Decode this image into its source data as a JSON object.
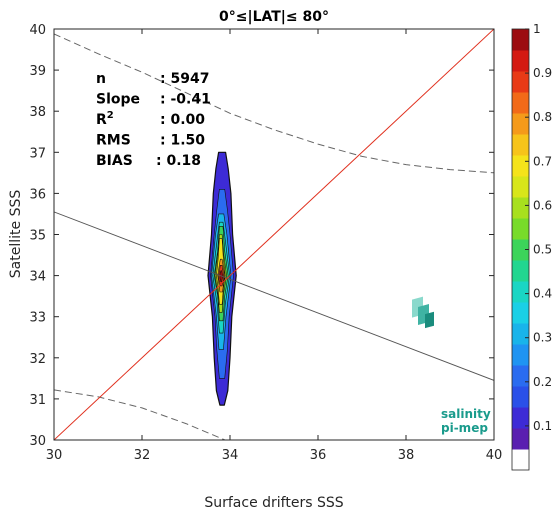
{
  "chart_data": {
    "type": "heatmap",
    "title": "0°≤|LAT|≤ 80°",
    "xlabel": "Surface drifters SSS",
    "ylabel": "Satellite SSS",
    "xlim": [
      30,
      40
    ],
    "ylim": [
      30,
      40
    ],
    "x_ticks": [
      30,
      32,
      34,
      36,
      38,
      40
    ],
    "y_ticks": [
      30,
      31,
      32,
      33,
      34,
      35,
      36,
      37,
      38,
      39,
      40
    ],
    "grid": false,
    "stats": [
      {
        "name": "n",
        "value": ": 5947"
      },
      {
        "name": "Slope",
        "value": ": -0.41"
      },
      {
        "name": "R",
        "sup": "2",
        "value": ": 0.00"
      },
      {
        "name": "RMS",
        "value": ": 1.50"
      },
      {
        "name": "BIAS",
        "value": ": 0.18"
      }
    ],
    "identity_line": {
      "x": [
        30,
        40
      ],
      "y": [
        30,
        40
      ],
      "color": "#e0301e"
    },
    "regression_line": {
      "x": [
        30,
        40
      ],
      "y": [
        35.55,
        31.45
      ],
      "color": "#555555"
    },
    "dashed_upper": {
      "x": [
        30,
        31,
        32,
        33,
        34,
        35,
        36,
        37,
        38,
        39,
        40
      ],
      "y": [
        39.88,
        39.4,
        38.95,
        38.45,
        37.95,
        37.55,
        37.2,
        36.9,
        36.7,
        36.58,
        36.5
      ]
    },
    "dashed_lower": {
      "x": [
        30,
        31,
        32,
        33,
        34
      ],
      "y": [
        31.22,
        31.05,
        30.78,
        30.4,
        29.95
      ]
    },
    "density_contours": [
      {
        "level": 0.05,
        "color": "#3d2bd6",
        "cx": 33.82,
        "w": [
          [
            30.85,
            0.05
          ],
          [
            31.2,
            0.13
          ],
          [
            32.0,
            0.18
          ],
          [
            33.0,
            0.22
          ],
          [
            34.0,
            0.32
          ],
          [
            35.0,
            0.24
          ],
          [
            36.0,
            0.2
          ],
          [
            36.6,
            0.14
          ],
          [
            37.0,
            0.08
          ]
        ]
      },
      {
        "level": 0.15,
        "color": "#2a6cf0",
        "cx": 33.82,
        "w": [
          [
            31.5,
            0.06
          ],
          [
            32.2,
            0.12
          ],
          [
            33.0,
            0.16
          ],
          [
            34.0,
            0.26
          ],
          [
            35.0,
            0.18
          ],
          [
            35.6,
            0.12
          ],
          [
            36.1,
            0.06
          ]
        ]
      },
      {
        "level": 0.25,
        "color": "#19b4ea",
        "cx": 33.8,
        "w": [
          [
            32.2,
            0.05
          ],
          [
            33.0,
            0.11
          ],
          [
            34.0,
            0.22
          ],
          [
            35.0,
            0.13
          ],
          [
            35.5,
            0.06
          ]
        ]
      },
      {
        "level": 0.35,
        "color": "#1ad6c4",
        "cx": 33.8,
        "w": [
          [
            32.6,
            0.04
          ],
          [
            33.3,
            0.09
          ],
          [
            34.0,
            0.19
          ],
          [
            34.8,
            0.1
          ],
          [
            35.3,
            0.04
          ]
        ]
      },
      {
        "level": 0.45,
        "color": "#3cd45a",
        "cx": 33.8,
        "w": [
          [
            32.9,
            0.04
          ],
          [
            33.5,
            0.08
          ],
          [
            34.0,
            0.16
          ],
          [
            34.6,
            0.08
          ],
          [
            35.2,
            0.04
          ]
        ]
      },
      {
        "level": 0.55,
        "color": "#a8e01e",
        "cx": 33.79,
        "w": [
          [
            33.1,
            0.03
          ],
          [
            33.6,
            0.07
          ],
          [
            34.0,
            0.13
          ],
          [
            34.5,
            0.07
          ],
          [
            35.0,
            0.03
          ]
        ]
      },
      {
        "level": 0.65,
        "color": "#f5e31a",
        "cx": 33.79,
        "w": [
          [
            33.3,
            0.03
          ],
          [
            33.7,
            0.06
          ],
          [
            34.0,
            0.1
          ],
          [
            34.4,
            0.06
          ],
          [
            34.9,
            0.03
          ]
        ]
      },
      {
        "level": 0.75,
        "color": "#f59a1a",
        "cx": 33.8,
        "w": [
          [
            33.6,
            0.03
          ],
          [
            33.85,
            0.06
          ],
          [
            34.0,
            0.08
          ],
          [
            34.2,
            0.05
          ],
          [
            34.4,
            0.02
          ]
        ]
      },
      {
        "level": 0.85,
        "color": "#e83a16",
        "cx": 33.8,
        "w": [
          [
            33.75,
            0.02
          ],
          [
            33.9,
            0.05
          ],
          [
            34.0,
            0.06
          ],
          [
            34.1,
            0.04
          ],
          [
            34.25,
            0.02
          ]
        ]
      },
      {
        "level": 0.95,
        "color": "#9c0c10",
        "cx": 33.8,
        "w": [
          [
            33.85,
            0.01
          ],
          [
            33.95,
            0.03
          ],
          [
            34.03,
            0.03
          ],
          [
            34.12,
            0.01
          ]
        ]
      }
    ],
    "colorbar": {
      "ticks": [
        0.1,
        0.2,
        0.3,
        0.4,
        0.5,
        0.6,
        0.7,
        0.8,
        0.9,
        1
      ],
      "tick_labels": [
        "0.1",
        "0.2",
        "0.3",
        "0.4",
        "0.5",
        "0.6",
        "0.7",
        "0.8",
        "0.9",
        "1"
      ],
      "colors": [
        "#ffffff",
        "#5a1fb0",
        "#3d2bd6",
        "#2a50e8",
        "#2a6cf0",
        "#1f94f2",
        "#19b4ea",
        "#1ad0e6",
        "#1ad6c4",
        "#22d690",
        "#3cd45a",
        "#78db2a",
        "#a8e01e",
        "#d8e61a",
        "#f5e31a",
        "#f7c41a",
        "#f59a1a",
        "#f26a18",
        "#e83a16",
        "#d41a12",
        "#9c0c10"
      ]
    },
    "logo": {
      "line1": "salinity",
      "line2": "pi-mep"
    }
  }
}
